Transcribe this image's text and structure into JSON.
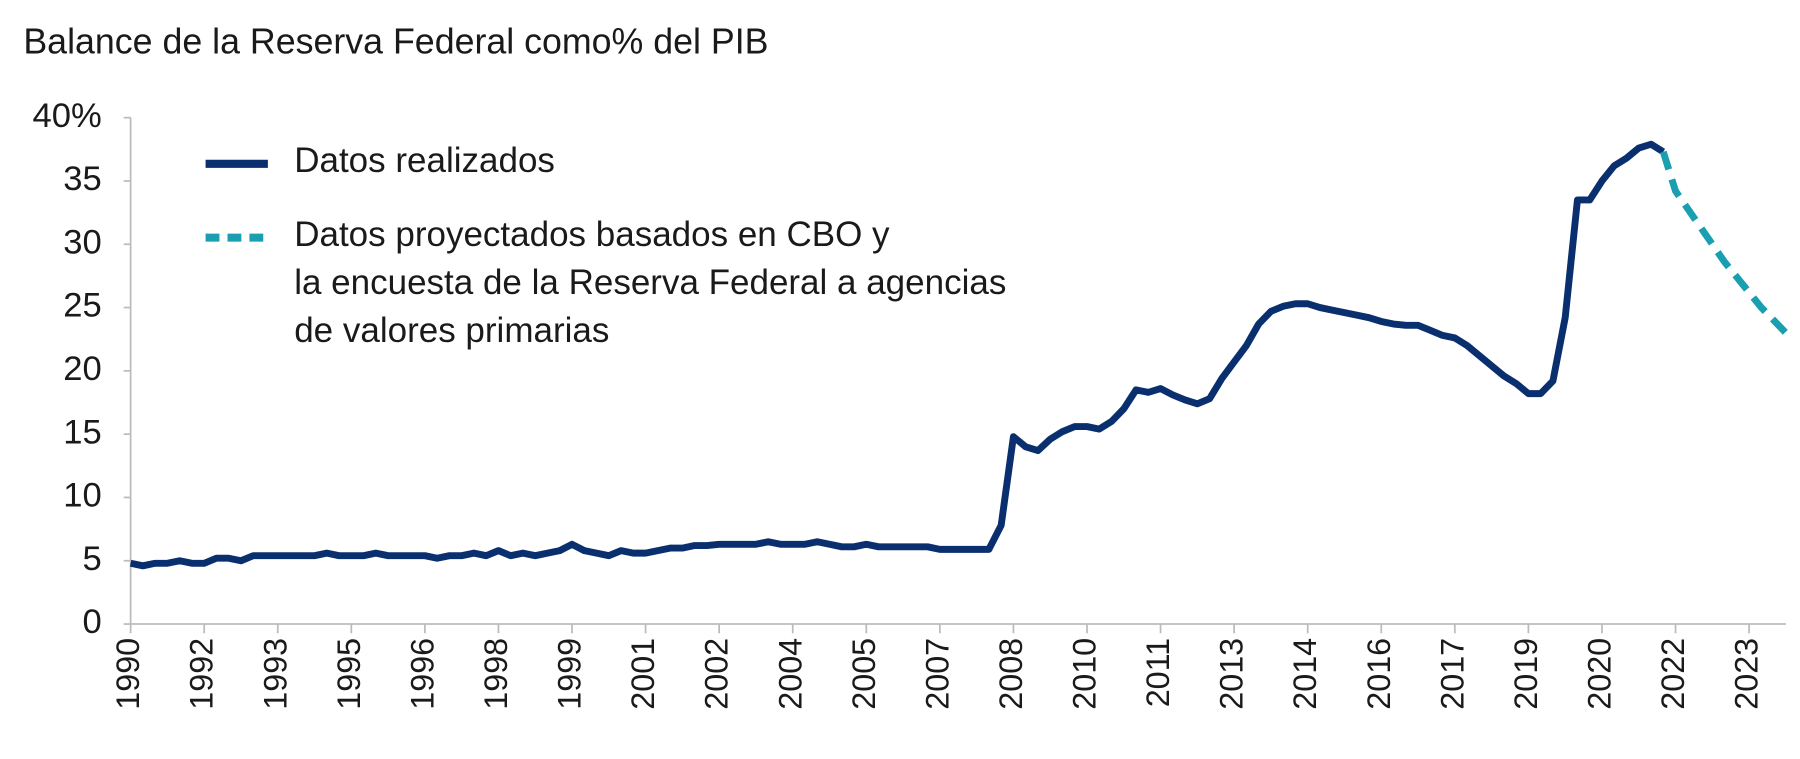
{
  "chart_data": {
    "type": "line",
    "title": "Balance de la Reserva Federal como% del PIB",
    "categories": [
      "1990",
      null,
      null,
      null,
      null,
      null,
      "1992",
      null,
      null,
      null,
      null,
      null,
      "1993",
      null,
      null,
      null,
      null,
      null,
      "1995",
      null,
      null,
      null,
      null,
      null,
      "1996",
      null,
      null,
      null,
      null,
      null,
      "1998",
      null,
      null,
      null,
      null,
      null,
      "1999",
      null,
      null,
      null,
      null,
      null,
      "2001",
      null,
      null,
      null,
      null,
      null,
      "2002",
      null,
      null,
      null,
      null,
      null,
      "2004",
      null,
      null,
      null,
      null,
      null,
      "2005",
      null,
      null,
      null,
      null,
      null,
      "2007",
      null,
      null,
      null,
      null,
      null,
      "2008",
      null,
      null,
      null,
      null,
      null,
      "2010",
      null,
      null,
      null,
      null,
      null,
      "2011",
      null,
      null,
      null,
      null,
      null,
      "2013",
      null,
      null,
      null,
      null,
      null,
      "2014",
      null,
      null,
      null,
      null,
      null,
      "2016",
      null,
      null,
      null,
      null,
      null,
      "2017",
      null,
      null,
      null,
      null,
      null,
      "2019",
      null,
      null,
      null,
      null,
      null,
      "2020",
      null,
      null,
      null,
      null,
      null,
      "2022",
      null,
      null,
      null,
      null,
      null,
      "2023",
      null,
      null,
      null
    ],
    "series": [
      {
        "name": "Datos realizados",
        "color": "#0a2f6e",
        "dashed": false,
        "values": [
          4.8,
          4.6,
          4.8,
          4.8,
          5.0,
          4.8,
          4.8,
          5.2,
          5.2,
          5.0,
          5.4,
          5.4,
          5.4,
          5.4,
          5.4,
          5.4,
          5.6,
          5.4,
          5.4,
          5.4,
          5.6,
          5.4,
          5.4,
          5.4,
          5.4,
          5.2,
          5.4,
          5.4,
          5.6,
          5.4,
          5.8,
          5.4,
          5.6,
          5.4,
          5.6,
          5.8,
          6.3,
          5.8,
          5.6,
          5.4,
          5.8,
          5.6,
          5.6,
          5.8,
          6.0,
          6.0,
          6.2,
          6.2,
          6.3,
          6.3,
          6.3,
          6.3,
          6.5,
          6.3,
          6.3,
          6.3,
          6.5,
          6.3,
          6.1,
          6.1,
          6.3,
          6.1,
          6.1,
          6.1,
          6.1,
          6.1,
          5.9,
          5.9,
          5.9,
          5.9,
          5.9,
          7.8,
          14.8,
          14.0,
          13.7,
          14.6,
          15.2,
          15.6,
          15.6,
          15.4,
          16.0,
          17.0,
          18.5,
          18.3,
          18.6,
          18.1,
          17.7,
          17.4,
          17.8,
          19.4,
          20.7,
          22.0,
          23.7,
          24.7,
          25.1,
          25.3,
          25.3,
          25.0,
          24.8,
          24.6,
          24.4,
          24.2,
          23.9,
          23.7,
          23.6,
          23.6,
          23.2,
          22.8,
          22.6,
          22.0,
          21.2,
          20.4,
          19.6,
          19.0,
          18.2,
          18.2,
          19.2,
          24.2,
          33.5,
          33.5,
          35.0,
          36.2,
          36.8,
          37.6,
          37.9,
          37.3,
          null,
          null,
          null,
          null,
          null,
          null,
          null,
          null,
          null,
          null
        ]
      },
      {
        "name": "Datos proyectados basados en CBO y\nla encuesta de la Reserva Federal a agencias\nde valores primarias",
        "color": "#1a9fb0",
        "dashed": true,
        "values": [
          null,
          null,
          null,
          null,
          null,
          null,
          null,
          null,
          null,
          null,
          null,
          null,
          null,
          null,
          null,
          null,
          null,
          null,
          null,
          null,
          null,
          null,
          null,
          null,
          null,
          null,
          null,
          null,
          null,
          null,
          null,
          null,
          null,
          null,
          null,
          null,
          null,
          null,
          null,
          null,
          null,
          null,
          null,
          null,
          null,
          null,
          null,
          null,
          null,
          null,
          null,
          null,
          null,
          null,
          null,
          null,
          null,
          null,
          null,
          null,
          null,
          null,
          null,
          null,
          null,
          null,
          null,
          null,
          null,
          null,
          null,
          null,
          null,
          null,
          null,
          null,
          null,
          null,
          null,
          null,
          null,
          null,
          null,
          null,
          null,
          null,
          null,
          null,
          null,
          null,
          null,
          null,
          null,
          null,
          null,
          null,
          null,
          null,
          null,
          null,
          null,
          null,
          null,
          null,
          null,
          null,
          null,
          null,
          null,
          null,
          null,
          null,
          null,
          null,
          null,
          null,
          null,
          null,
          null,
          null,
          null,
          null,
          null,
          null,
          null,
          37.3,
          34.2,
          32.8,
          31.4,
          30.0,
          28.6,
          27.4,
          26.2,
          25.0,
          24.0,
          23.0
        ]
      }
    ],
    "ylim": [
      0,
      40
    ],
    "yticks": [
      0,
      5,
      10,
      15,
      20,
      25,
      30,
      35,
      {
        "value": 40,
        "label": "40%"
      }
    ],
    "grid": false,
    "legend": "top-left"
  }
}
